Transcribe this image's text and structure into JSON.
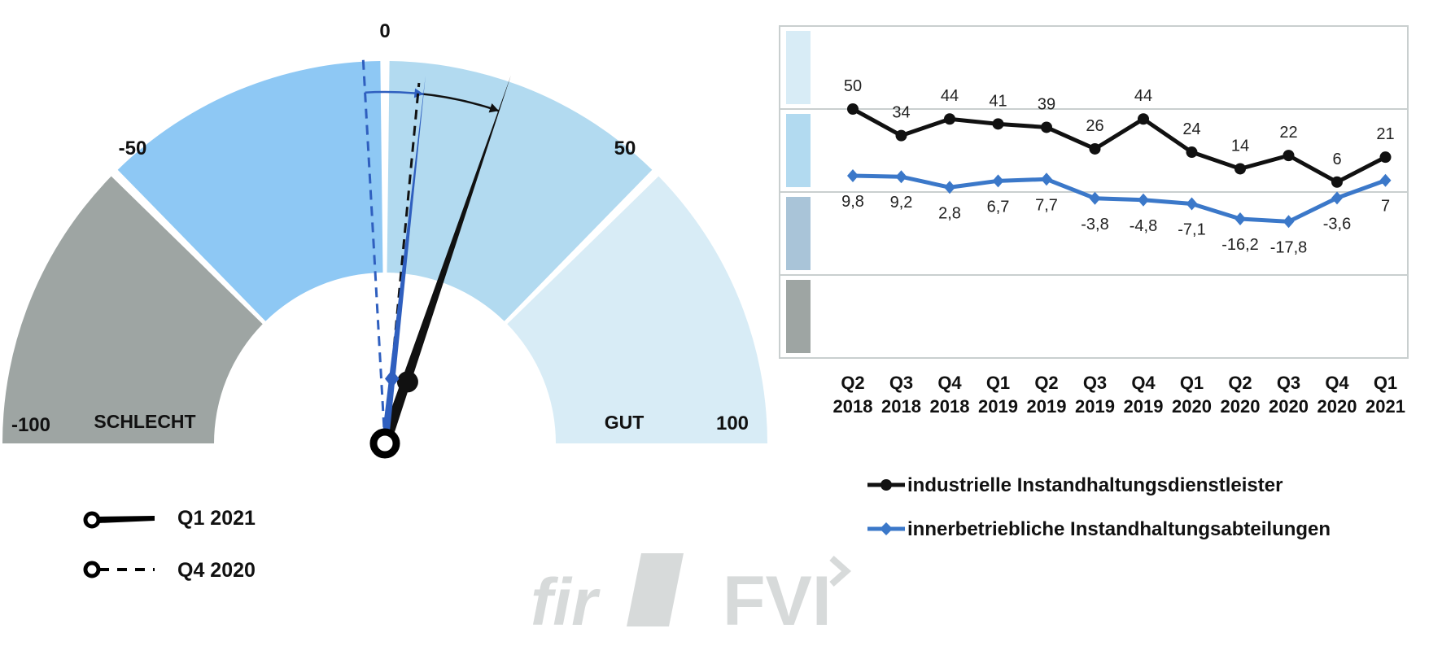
{
  "chart_data": [
    {
      "type": "gauge",
      "range": [
        -100,
        100
      ],
      "tick_labels": [
        "-100",
        "-50",
        "0",
        "50",
        "100"
      ],
      "zones": [
        {
          "from": -100,
          "to": -50,
          "color": "#9ea5a3"
        },
        {
          "from": -50,
          "to": 0,
          "color": "#8ec8f4"
        },
        {
          "from": 0,
          "to": 50,
          "color": "#b2daf0"
        },
        {
          "from": 50,
          "to": 100,
          "color": "#d8ecf6"
        }
      ],
      "zone_labels": {
        "bad": "SCHLECHT",
        "good": "GUT"
      },
      "needles": [
        {
          "name": "industrielle Instandhaltungsdienstleister",
          "period": "Q1 2021",
          "value": 21,
          "style": "solid",
          "color": "#111111"
        },
        {
          "name": "industrielle Instandhaltungsdienstleister",
          "period": "Q4 2020",
          "value": 6,
          "style": "dashed",
          "color": "#111111"
        },
        {
          "name": "innerbetriebliche Instandhaltungsabteilungen",
          "period": "Q1 2021",
          "value": 7,
          "style": "solid",
          "color": "#2f5fbf"
        },
        {
          "name": "innerbetriebliche Instandhaltungsabteilungen",
          "period": "Q4 2020",
          "value": -3.6,
          "style": "dashed",
          "color": "#2f5fbf"
        }
      ],
      "legend": [
        {
          "label": "Q1 2021",
          "style": "solid"
        },
        {
          "label": "Q4 2020",
          "style": "dashed"
        }
      ]
    },
    {
      "type": "line",
      "categories": [
        [
          "Q2",
          "2018"
        ],
        [
          "Q3",
          "2018"
        ],
        [
          "Q4",
          "2018"
        ],
        [
          "Q1",
          "2019"
        ],
        [
          "Q2",
          "2019"
        ],
        [
          "Q3",
          "2019"
        ],
        [
          "Q4",
          "2019"
        ],
        [
          "Q1",
          "2020"
        ],
        [
          "Q2",
          "2020"
        ],
        [
          "Q3",
          "2020"
        ],
        [
          "Q4",
          "2020"
        ],
        [
          "Q1",
          "2021"
        ]
      ],
      "ylim": [
        -100,
        100
      ],
      "grid": true,
      "band_colors": [
        "#d8ecf6",
        "#b2daf0",
        "#a9c4d8",
        "#9ea5a3"
      ],
      "series": [
        {
          "name": "industrielle Instandhaltungsdienstleister",
          "color": "#111111",
          "marker": "circle",
          "values": [
            50,
            34,
            44,
            41,
            39,
            26,
            44,
            24,
            14,
            22,
            6,
            21
          ],
          "labels": [
            "50",
            "34",
            "44",
            "41",
            "39",
            "26",
            "44",
            "24",
            "14",
            "22",
            "6",
            "21"
          ]
        },
        {
          "name": "innerbetriebliche Instandhaltungsabteilungen",
          "color": "#3b78c9",
          "marker": "diamond",
          "values": [
            9.8,
            9.2,
            2.8,
            6.7,
            7.7,
            -3.8,
            -4.8,
            -7.1,
            -16.2,
            -17.8,
            -3.6,
            7
          ],
          "labels": [
            "9,8",
            "9,2",
            "2,8",
            "6,7",
            "7,7",
            "-3,8",
            "-4,8",
            "-7,1",
            "-16,2",
            "-17,8",
            "-3,6",
            "7"
          ]
        }
      ],
      "legend": "bottom"
    }
  ],
  "logos": {
    "left": "fir",
    "right": "FVI"
  }
}
